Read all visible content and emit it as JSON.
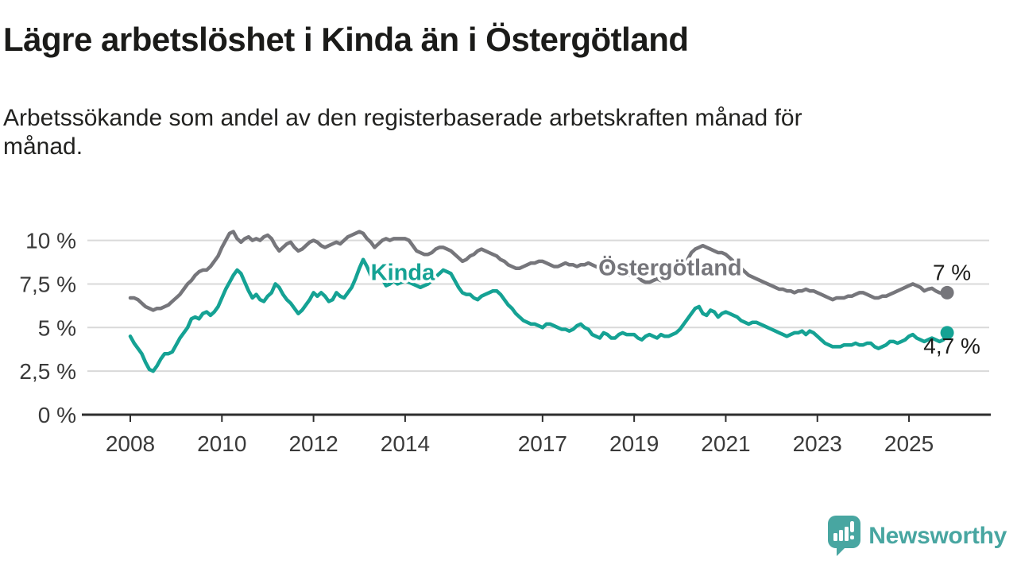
{
  "chart_data": {
    "type": "line",
    "title": "Lägre arbetslöshet i Kinda än i Östergötland",
    "subtitle_lines": [
      "Arbetssökande som andel av den registerbaserade arbetskraften månad för",
      "månad."
    ],
    "unit": "%",
    "x_start": 2008.0,
    "points_per_year": 12,
    "ylim": [
      0,
      11
    ],
    "grid": true,
    "legend_position": "inline-labels",
    "style": {
      "background": "#ffffff",
      "grid_color": "#d9d9d9",
      "axis_color": "#2e2e2e",
      "tick_label_color": "#3a3a3a"
    },
    "y_ticks": [
      {
        "value": 10,
        "label": "10 %"
      },
      {
        "value": 7.5,
        "label": "7,5 %"
      },
      {
        "value": 5,
        "label": "5 %"
      },
      {
        "value": 2.5,
        "label": "2,5 %"
      },
      {
        "value": 0,
        "label": "0 %"
      }
    ],
    "x_ticks": [
      {
        "year": 2008,
        "label": "2008"
      },
      {
        "year": 2010,
        "label": "2010"
      },
      {
        "year": 2012,
        "label": "2012"
      },
      {
        "year": 2014,
        "label": "2014"
      },
      {
        "year": 2017,
        "label": "2017"
      },
      {
        "year": 2019,
        "label": "2019"
      },
      {
        "year": 2021,
        "label": "2021"
      },
      {
        "year": 2023,
        "label": "2023"
      },
      {
        "year": 2025,
        "label": "2025"
      }
    ],
    "series": [
      {
        "name": "Kinda",
        "color": "#15a294",
        "end_label": "4,7 %",
        "end_value": 4.7,
        "end_label_position": "below",
        "inline_label_at": {
          "year": 2013.25,
          "value": 7.72
        },
        "values": [
          4.5,
          4.1,
          3.8,
          3.5,
          3.0,
          2.6,
          2.5,
          2.8,
          3.2,
          3.5,
          3.5,
          3.6,
          4.0,
          4.4,
          4.7,
          5.0,
          5.5,
          5.6,
          5.5,
          5.8,
          5.9,
          5.7,
          5.9,
          6.2,
          6.7,
          7.2,
          7.6,
          8.0,
          8.3,
          8.1,
          7.6,
          7.1,
          6.7,
          6.9,
          6.6,
          6.5,
          6.8,
          7.0,
          7.5,
          7.3,
          6.9,
          6.6,
          6.4,
          6.1,
          5.8,
          6.0,
          6.3,
          6.6,
          7.0,
          6.8,
          7.0,
          6.8,
          6.5,
          6.6,
          7.0,
          6.8,
          6.7,
          7.0,
          7.3,
          7.8,
          8.4,
          8.9,
          8.5,
          8.0,
          7.7,
          8.1,
          7.8,
          7.4,
          7.5,
          7.7,
          7.5,
          7.6,
          7.7,
          7.6,
          7.5,
          7.4,
          7.3,
          7.4,
          7.5,
          7.7,
          7.9,
          8.1,
          8.3,
          8.2,
          8.1,
          7.7,
          7.3,
          7.0,
          6.9,
          6.9,
          6.7,
          6.6,
          6.8,
          6.9,
          7.0,
          7.1,
          7.1,
          6.9,
          6.6,
          6.3,
          6.1,
          5.8,
          5.6,
          5.4,
          5.3,
          5.2,
          5.2,
          5.1,
          5.0,
          5.2,
          5.2,
          5.1,
          5.0,
          4.9,
          4.9,
          4.8,
          4.9,
          5.1,
          5.2,
          5.0,
          4.9,
          4.6,
          4.5,
          4.4,
          4.7,
          4.6,
          4.4,
          4.4,
          4.6,
          4.7,
          4.6,
          4.6,
          4.6,
          4.4,
          4.3,
          4.5,
          4.6,
          4.5,
          4.4,
          4.6,
          4.5,
          4.5,
          4.6,
          4.7,
          4.9,
          5.2,
          5.5,
          5.8,
          6.1,
          6.2,
          5.8,
          5.7,
          6.0,
          5.9,
          5.6,
          5.8,
          5.9,
          5.8,
          5.7,
          5.6,
          5.4,
          5.3,
          5.2,
          5.3,
          5.3,
          5.2,
          5.1,
          5.0,
          4.9,
          4.8,
          4.7,
          4.6,
          4.5,
          4.6,
          4.7,
          4.7,
          4.8,
          4.6,
          4.8,
          4.7,
          4.5,
          4.3,
          4.1,
          4.0,
          3.9,
          3.9,
          3.9,
          4.0,
          4.0,
          4.0,
          4.1,
          4.0,
          4.0,
          4.1,
          4.1,
          3.9,
          3.8,
          3.9,
          4.0,
          4.2,
          4.2,
          4.1,
          4.2,
          4.3,
          4.5,
          4.6,
          4.4,
          4.3,
          4.2,
          4.3,
          4.4,
          4.3,
          4.2,
          4.3,
          4.7
        ]
      },
      {
        "name": "Östergötland",
        "color": "#76767b",
        "end_label": "7 %",
        "end_value": 7.0,
        "end_label_position": "above",
        "inline_label_at": {
          "year": 2018.22,
          "value": 8.0
        },
        "values": [
          6.7,
          6.7,
          6.6,
          6.4,
          6.2,
          6.1,
          6.0,
          6.1,
          6.1,
          6.2,
          6.3,
          6.5,
          6.7,
          6.9,
          7.2,
          7.5,
          7.7,
          8.0,
          8.2,
          8.3,
          8.3,
          8.5,
          8.8,
          9.1,
          9.6,
          10.0,
          10.4,
          10.5,
          10.1,
          9.9,
          10.1,
          10.2,
          10.0,
          10.1,
          10.0,
          10.2,
          10.3,
          10.1,
          9.7,
          9.4,
          9.6,
          9.8,
          9.9,
          9.6,
          9.4,
          9.5,
          9.7,
          9.9,
          10.0,
          9.9,
          9.7,
          9.6,
          9.7,
          9.8,
          9.9,
          9.8,
          10.0,
          10.2,
          10.3,
          10.4,
          10.5,
          10.4,
          10.1,
          9.9,
          9.6,
          9.8,
          10.0,
          10.1,
          10.0,
          10.1,
          10.1,
          10.1,
          10.1,
          10.0,
          9.7,
          9.4,
          9.3,
          9.2,
          9.2,
          9.3,
          9.5,
          9.6,
          9.6,
          9.5,
          9.4,
          9.2,
          9.0,
          8.8,
          8.9,
          9.1,
          9.2,
          9.4,
          9.5,
          9.4,
          9.3,
          9.2,
          9.1,
          8.9,
          8.8,
          8.6,
          8.5,
          8.4,
          8.4,
          8.5,
          8.6,
          8.7,
          8.7,
          8.8,
          8.8,
          8.7,
          8.6,
          8.5,
          8.5,
          8.6,
          8.7,
          8.6,
          8.6,
          8.5,
          8.6,
          8.6,
          8.7,
          8.6,
          8.5,
          8.4,
          8.4,
          8.5,
          8.4,
          8.3,
          8.2,
          8.1,
          8.1,
          8.0,
          8.0,
          7.9,
          7.7,
          7.6,
          7.6,
          7.7,
          7.8,
          7.7,
          7.8,
          7.9,
          8.0,
          8.2,
          8.4,
          8.6,
          8.9,
          9.3,
          9.5,
          9.6,
          9.7,
          9.6,
          9.5,
          9.4,
          9.3,
          9.3,
          9.2,
          9.0,
          8.8,
          8.6,
          8.4,
          8.2,
          8.0,
          7.9,
          7.8,
          7.7,
          7.6,
          7.5,
          7.4,
          7.3,
          7.2,
          7.2,
          7.1,
          7.1,
          7.0,
          7.1,
          7.1,
          7.2,
          7.1,
          7.1,
          7.0,
          6.9,
          6.8,
          6.7,
          6.6,
          6.7,
          6.7,
          6.7,
          6.8,
          6.8,
          6.9,
          7.0,
          7.0,
          6.9,
          6.8,
          6.7,
          6.7,
          6.8,
          6.8,
          6.9,
          7.0,
          7.1,
          7.2,
          7.3,
          7.4,
          7.5,
          7.4,
          7.3,
          7.1,
          7.2,
          7.25,
          7.1,
          7.0,
          6.95,
          7.0
        ]
      }
    ]
  },
  "branding": {
    "logo_text": "Newsworthy",
    "logo_icon": "newsworthy-chart-bubble-icon",
    "color": "#48a6a1"
  }
}
